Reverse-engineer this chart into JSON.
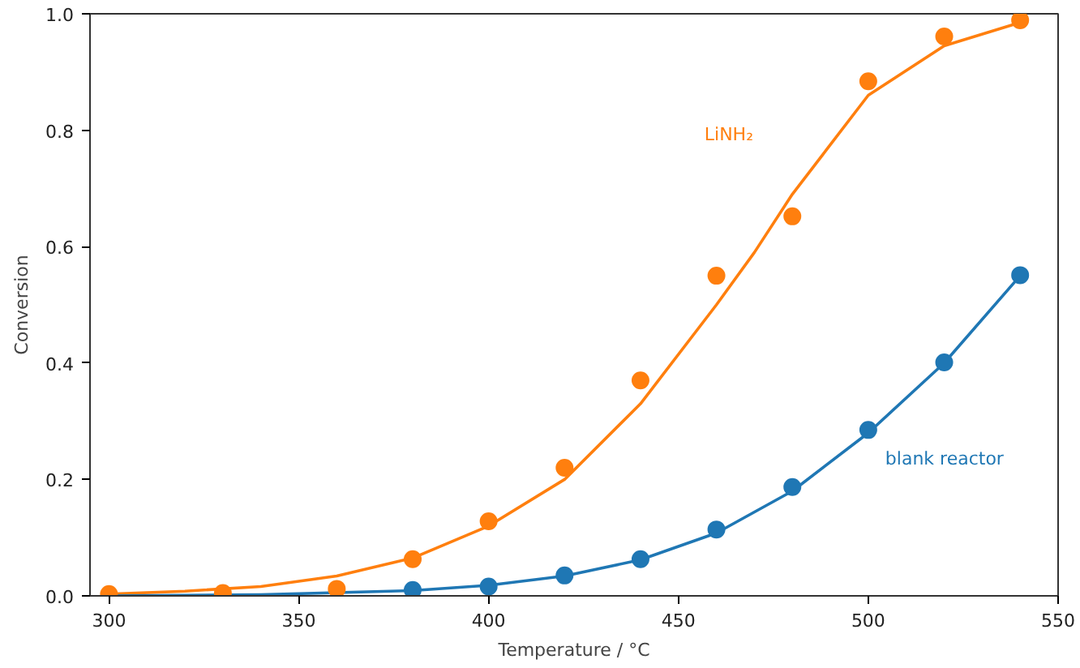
{
  "chart_data": {
    "type": "scatter",
    "xlabel": "Temperature / °C",
    "ylabel": "Conversion",
    "xlim": [
      295,
      550
    ],
    "ylim": [
      0,
      1.0
    ],
    "xticks": [
      300,
      350,
      400,
      450,
      500,
      550
    ],
    "yticks": [
      {
        "value": 0,
        "label": "0.0"
      },
      {
        "value": 0.2,
        "label": "0.2"
      },
      {
        "value": 0.4,
        "label": "0.4"
      },
      {
        "value": 0.6,
        "label": "0.6"
      },
      {
        "value": 0.8,
        "label": "0.8"
      },
      {
        "value": 1.0,
        "label": "1.0"
      }
    ],
    "grid": false,
    "marker": "circle",
    "series": [
      {
        "type": "line",
        "color": "#ff7f0e",
        "marker": "none",
        "x": [
          300,
          320,
          340,
          360,
          380,
          400,
          420,
          440,
          460,
          470,
          480,
          500,
          520,
          540
        ],
        "values": [
          0.003,
          0.008,
          0.016,
          0.034,
          0.065,
          0.12,
          0.2,
          0.33,
          0.5,
          0.59,
          0.69,
          0.86,
          0.945,
          0.985
        ]
      },
      {
        "type": "line",
        "color": "#1f77b4",
        "marker": "none",
        "x": [
          300,
          340,
          380,
          400,
          420,
          440,
          460,
          480,
          500,
          520,
          540
        ],
        "values": [
          0.0,
          0.002,
          0.009,
          0.018,
          0.034,
          0.062,
          0.108,
          0.18,
          0.28,
          0.4,
          0.55
        ]
      },
      {
        "name": "LiNH₂",
        "color": "#ff7f0e",
        "x": [
          300,
          330,
          360,
          380,
          400,
          420,
          440,
          460,
          480,
          500,
          520,
          540
        ],
        "values": [
          0.003,
          0.005,
          0.012,
          0.063,
          0.128,
          0.22,
          0.37,
          0.55,
          0.652,
          0.884,
          0.961,
          0.989
        ]
      },
      {
        "name": "blank reactor",
        "color": "#1f77b4",
        "x": [
          380,
          400,
          420,
          440,
          460,
          480,
          500,
          520,
          540
        ],
        "values": [
          0.01,
          0.016,
          0.035,
          0.063,
          0.114,
          0.187,
          0.285,
          0.401,
          0.551
        ]
      }
    ]
  }
}
